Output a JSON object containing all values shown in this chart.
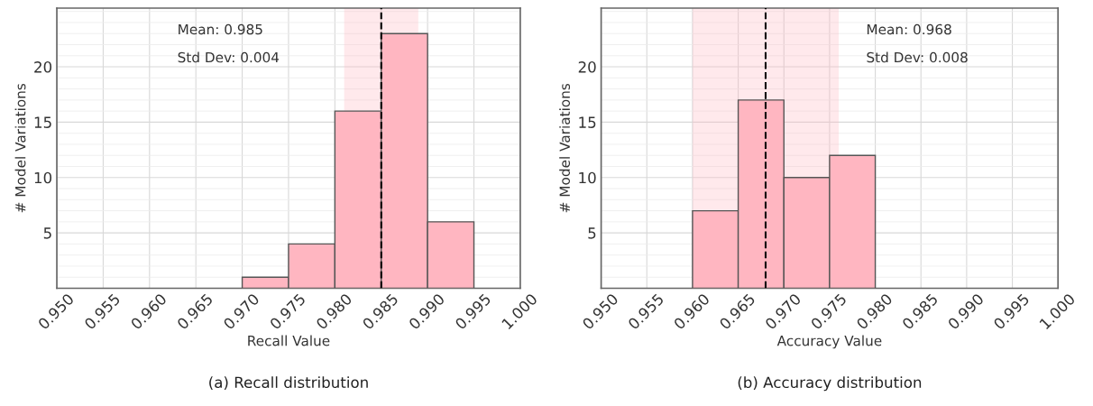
{
  "chart_data": [
    {
      "type": "histogram",
      "xlabel": "Recall Value",
      "ylabel": "# Model Variations",
      "bins": [
        0.97,
        0.975,
        0.98,
        0.985,
        0.99,
        0.995
      ],
      "values": [
        1,
        4,
        16,
        23,
        6
      ],
      "color": "#ffb6c1",
      "xlim": [
        0.95,
        1.0
      ],
      "xticks": [
        {
          "value": 0.95,
          "label": "0.950"
        },
        {
          "value": 0.955,
          "label": "0.955"
        },
        {
          "value": 0.96,
          "label": "0.960"
        },
        {
          "value": 0.965,
          "label": "0.965"
        },
        {
          "value": 0.97,
          "label": "0.970"
        },
        {
          "value": 0.975,
          "label": "0.975"
        },
        {
          "value": 0.98,
          "label": "0.980"
        },
        {
          "value": 0.985,
          "label": "0.985"
        },
        {
          "value": 0.99,
          "label": "0.990"
        },
        {
          "value": 0.995,
          "label": "0.995"
        },
        {
          "value": 1.0,
          "label": "1.000"
        }
      ],
      "ylim": [
        0,
        25.3
      ],
      "yticks": [
        5,
        10,
        15,
        20
      ],
      "grid": true,
      "ref_lines": [
        {
          "axis": "x",
          "value": 0.985,
          "color": "#000000",
          "line_style": "dashed"
        }
      ],
      "bands": [
        {
          "axis": "x",
          "from": 0.981,
          "to": 0.989,
          "color": "#ffb6c1"
        }
      ],
      "annotations": [
        "Mean: 0.985",
        "Std Dev: 0.004",
        "(a) Recall distribution"
      ]
    },
    {
      "type": "histogram",
      "xlabel": "Accuracy Value",
      "ylabel": "# Model Variations",
      "bins": [
        0.96,
        0.965,
        0.97,
        0.975,
        0.98
      ],
      "values": [
        7,
        17,
        10,
        12
      ],
      "color": "#ffb6c1",
      "xlim": [
        0.95,
        1.0
      ],
      "xticks": [
        {
          "value": 0.95,
          "label": "0.950"
        },
        {
          "value": 0.955,
          "label": "0.955"
        },
        {
          "value": 0.96,
          "label": "0.960"
        },
        {
          "value": 0.965,
          "label": "0.965"
        },
        {
          "value": 0.97,
          "label": "0.970"
        },
        {
          "value": 0.975,
          "label": "0.975"
        },
        {
          "value": 0.98,
          "label": "0.980"
        },
        {
          "value": 0.985,
          "label": "0.985"
        },
        {
          "value": 0.99,
          "label": "0.990"
        },
        {
          "value": 0.995,
          "label": "0.995"
        },
        {
          "value": 1.0,
          "label": "1.000"
        }
      ],
      "ylim": [
        0,
        25.3
      ],
      "yticks": [
        5,
        10,
        15,
        20
      ],
      "grid": true,
      "ref_lines": [
        {
          "axis": "x",
          "value": 0.968,
          "color": "#000000",
          "line_style": "dashed"
        }
      ],
      "bands": [
        {
          "axis": "x",
          "from": 0.96,
          "to": 0.976,
          "color": "#ffb6c1"
        }
      ],
      "annotations": [
        "Mean: 0.968",
        "Std Dev: 0.008",
        "(b) Accuracy distribution"
      ]
    }
  ]
}
